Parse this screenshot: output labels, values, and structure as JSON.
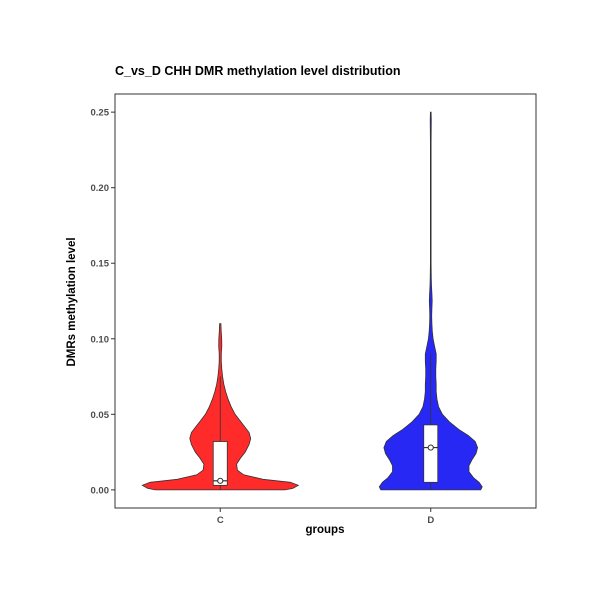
{
  "chart_data": {
    "type": "violin",
    "title": "C_vs_D  CHH  DMR methylation level  distribution",
    "xlabel": "groups",
    "ylabel": "DMRs  methylation  level",
    "ylim": [
      -0.012,
      0.262
    ],
    "y_ticks": [
      0.0,
      0.05,
      0.1,
      0.15,
      0.2,
      0.25
    ],
    "y_tick_labels": [
      "0.00",
      "0.05",
      "0.10",
      "0.15",
      "0.20",
      "0.25"
    ],
    "grid": false,
    "legend": "none",
    "categories": [
      "C",
      "D"
    ],
    "groups": [
      {
        "name": "C",
        "color": "#ff2a2a",
        "min": 0.0,
        "max": 0.11,
        "box": {
          "q1": 0.003,
          "median": 0.006,
          "q3": 0.032,
          "whisker_low": 0.0,
          "whisker_high": 0.075
        },
        "density": [
          [
            0.0,
            0.83
          ],
          [
            0.001,
            0.93
          ],
          [
            0.003,
            1.0
          ],
          [
            0.005,
            0.9
          ],
          [
            0.007,
            0.55
          ],
          [
            0.01,
            0.3
          ],
          [
            0.013,
            0.22
          ],
          [
            0.017,
            0.21
          ],
          [
            0.021,
            0.26
          ],
          [
            0.025,
            0.32
          ],
          [
            0.03,
            0.37
          ],
          [
            0.034,
            0.39
          ],
          [
            0.038,
            0.37
          ],
          [
            0.042,
            0.31
          ],
          [
            0.046,
            0.25
          ],
          [
            0.05,
            0.19
          ],
          [
            0.055,
            0.14
          ],
          [
            0.06,
            0.1
          ],
          [
            0.065,
            0.07
          ],
          [
            0.07,
            0.045
          ],
          [
            0.075,
            0.03
          ],
          [
            0.08,
            0.02
          ],
          [
            0.085,
            0.014
          ],
          [
            0.09,
            0.014
          ],
          [
            0.095,
            0.02
          ],
          [
            0.1,
            0.018
          ],
          [
            0.105,
            0.012
          ],
          [
            0.11,
            0.008
          ]
        ]
      },
      {
        "name": "D",
        "color": "#2828f5",
        "min": 0.0,
        "max": 0.25,
        "box": {
          "q1": 0.005,
          "median": 0.028,
          "q3": 0.043,
          "whisker_low": 0.0,
          "whisker_high": 0.09
        },
        "density": [
          [
            0.0,
            0.64
          ],
          [
            0.002,
            0.66
          ],
          [
            0.005,
            0.62
          ],
          [
            0.008,
            0.55
          ],
          [
            0.012,
            0.49
          ],
          [
            0.016,
            0.49
          ],
          [
            0.02,
            0.53
          ],
          [
            0.024,
            0.58
          ],
          [
            0.028,
            0.6
          ],
          [
            0.032,
            0.57
          ],
          [
            0.036,
            0.48
          ],
          [
            0.04,
            0.36
          ],
          [
            0.045,
            0.24
          ],
          [
            0.05,
            0.15
          ],
          [
            0.055,
            0.1
          ],
          [
            0.06,
            0.08
          ],
          [
            0.065,
            0.07
          ],
          [
            0.07,
            0.07
          ],
          [
            0.075,
            0.065
          ],
          [
            0.08,
            0.065
          ],
          [
            0.085,
            0.07
          ],
          [
            0.09,
            0.07
          ],
          [
            0.095,
            0.05
          ],
          [
            0.1,
            0.03
          ],
          [
            0.105,
            0.02
          ],
          [
            0.11,
            0.015
          ],
          [
            0.115,
            0.012
          ],
          [
            0.12,
            0.015
          ],
          [
            0.125,
            0.018
          ],
          [
            0.13,
            0.015
          ],
          [
            0.135,
            0.01
          ],
          [
            0.14,
            0.007
          ],
          [
            0.15,
            0.005
          ],
          [
            0.17,
            0.004
          ],
          [
            0.19,
            0.004
          ],
          [
            0.21,
            0.004
          ],
          [
            0.23,
            0.004
          ],
          [
            0.245,
            0.007
          ],
          [
            0.25,
            0.004
          ]
        ]
      }
    ]
  }
}
